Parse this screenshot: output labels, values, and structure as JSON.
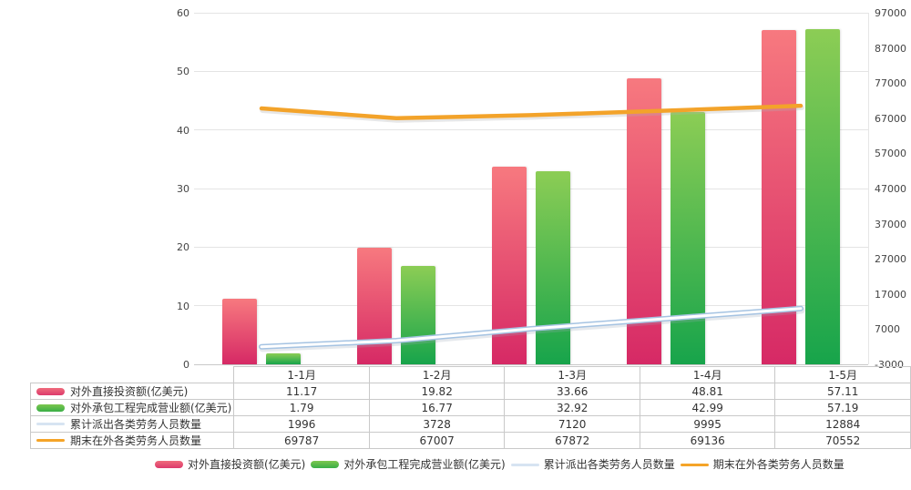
{
  "colors": {
    "bar_pink_top": "#f7797f",
    "bar_pink_bottom": "#d62965",
    "bar_green_top": "#8ccd55",
    "bar_green_bottom": "#17a44b",
    "line_orange": "#f3a32a",
    "line_blue_outer": "#a5c3e2",
    "line_blue_inner": "#ffffff",
    "grid": "#e4e4e4",
    "text": "#333333"
  },
  "chart_data": {
    "type": "bar",
    "subtype": "grouped bars with two overlay lines (dual axis combo)",
    "categories": [
      "1-1月",
      "1-2月",
      "1-3月",
      "1-4月",
      "1-5月"
    ],
    "series": [
      {
        "name": "对外直接投资额(亿美元)",
        "type": "bar",
        "axis": "left",
        "values": [
          11.17,
          19.82,
          33.66,
          48.81,
          57.11
        ],
        "swatch": "bar-pink"
      },
      {
        "name": "对外承包工程完成营业额(亿美元)",
        "type": "bar",
        "axis": "left",
        "values": [
          1.79,
          16.77,
          32.92,
          42.99,
          57.19
        ],
        "swatch": "bar-green"
      },
      {
        "name": "累计派出各类劳务人员数量",
        "type": "line",
        "axis": "right",
        "values": [
          1996,
          3728,
          7120,
          9995,
          12884
        ],
        "swatch": "line-blue"
      },
      {
        "name": "期末在外各类劳务人员数量",
        "type": "line",
        "axis": "right",
        "values": [
          69787,
          67007,
          67872,
          69136,
          70552
        ],
        "swatch": "line-orange"
      }
    ],
    "left_axis": {
      "min": 0,
      "max": 60,
      "step": 10,
      "tick_labels": [
        "0",
        "10",
        "20",
        "30",
        "40",
        "50",
        "60"
      ]
    },
    "right_axis": {
      "min": -3000,
      "max": 97000,
      "step": 10000,
      "tick_labels": [
        "-3000",
        "7000",
        "17000",
        "27000",
        "37000",
        "47000",
        "57000",
        "67000",
        "77000",
        "87000",
        "97000"
      ]
    },
    "grid": "horizontal only",
    "legend_position": "bottom",
    "title": ""
  },
  "table": {
    "column_headers": [
      "1-1月",
      "1-2月",
      "1-3月",
      "1-4月",
      "1-5月"
    ],
    "rows": [
      {
        "label": "对外直接投资额(亿美元)",
        "swatch": "bar-pink",
        "values": [
          "11.17",
          "19.82",
          "33.66",
          "48.81",
          "57.11"
        ]
      },
      {
        "label": "对外承包工程完成营业额(亿美元)",
        "swatch": "bar-green",
        "values": [
          "1.79",
          "16.77",
          "32.92",
          "42.99",
          "57.19"
        ]
      },
      {
        "label": "累计派出各类劳务人员数量",
        "swatch": "line-blue",
        "values": [
          "1996",
          "3728",
          "7120",
          "9995",
          "12884"
        ]
      },
      {
        "label": "期末在外各类劳务人员数量",
        "swatch": "line-orange",
        "values": [
          "69787",
          "67007",
          "67872",
          "69136",
          "70552"
        ]
      }
    ]
  },
  "legend": {
    "items": [
      {
        "label": "对外直接投资额(亿美元)",
        "swatch": "bar-pink"
      },
      {
        "label": "对外承包工程完成营业额(亿美元)",
        "swatch": "bar-green"
      },
      {
        "label": "累计派出各类劳务人员数量",
        "swatch": "line-blue"
      },
      {
        "label": "期末在外各类劳务人员数量",
        "swatch": "line-orange"
      }
    ]
  }
}
